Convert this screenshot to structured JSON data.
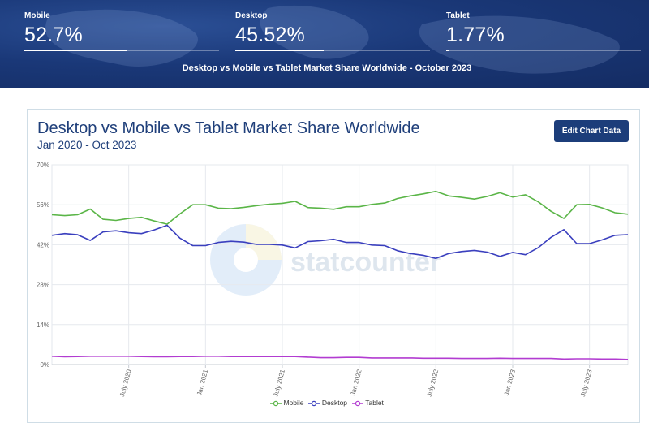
{
  "stats": [
    {
      "label": "Mobile",
      "value": "52.7%",
      "fill": 0.527
    },
    {
      "label": "Desktop",
      "value": "45.52%",
      "fill": 0.4552
    },
    {
      "label": "Tablet",
      "value": "1.77%",
      "fill": 0.0177
    }
  ],
  "banner_title": "Desktop vs Mobile vs Tablet Market Share Worldwide - October 2023",
  "edit_button_label": "Edit Chart Data",
  "watermark": "statcounter",
  "chart_data": {
    "type": "line",
    "title": "Desktop vs Mobile vs Tablet Market Share Worldwide",
    "subtitle": "Jan 2020 - Oct 2023",
    "xlabel": "",
    "ylabel": "",
    "x": [
      "2020-01",
      "2020-02",
      "2020-03",
      "2020-04",
      "2020-05",
      "2020-06",
      "2020-07",
      "2020-08",
      "2020-09",
      "2020-10",
      "2020-11",
      "2020-12",
      "2021-01",
      "2021-02",
      "2021-03",
      "2021-04",
      "2021-05",
      "2021-06",
      "2021-07",
      "2021-08",
      "2021-09",
      "2021-10",
      "2021-11",
      "2021-12",
      "2022-01",
      "2022-02",
      "2022-03",
      "2022-04",
      "2022-05",
      "2022-06",
      "2022-07",
      "2022-08",
      "2022-09",
      "2022-10",
      "2022-11",
      "2022-12",
      "2023-01",
      "2023-02",
      "2023-03",
      "2023-04",
      "2023-05",
      "2023-06",
      "2023-07",
      "2023-08",
      "2023-09",
      "2023-10"
    ],
    "x_tick_labels": [
      {
        "at": "2020-07",
        "label": "July 2020"
      },
      {
        "at": "2021-01",
        "label": "Jan 2021"
      },
      {
        "at": "2021-07",
        "label": "July 2021"
      },
      {
        "at": "2022-01",
        "label": "Jan 2022"
      },
      {
        "at": "2022-07",
        "label": "July 2022"
      },
      {
        "at": "2023-01",
        "label": "Jan 2023"
      },
      {
        "at": "2023-07",
        "label": "July 2023"
      }
    ],
    "y_ticks": [
      0,
      14,
      28,
      42,
      56,
      70
    ],
    "y_tick_labels": [
      "0%",
      "14%",
      "28%",
      "42%",
      "56%",
      "70%"
    ],
    "ylim": [
      0,
      70
    ],
    "grid": true,
    "legend": "bottom",
    "series": [
      {
        "name": "Mobile",
        "color": "#5ab547",
        "values": [
          52.5,
          52.2,
          52.5,
          54.5,
          50.9,
          50.5,
          51.2,
          51.6,
          50.3,
          49.2,
          52.8,
          56.0,
          56.0,
          54.8,
          54.6,
          55.1,
          55.7,
          56.2,
          56.5,
          57.2,
          55.0,
          54.8,
          54.4,
          55.3,
          55.3,
          56.1,
          56.6,
          58.2,
          59.1,
          59.8,
          60.7,
          59.1,
          58.6,
          58.0,
          58.9,
          60.2,
          58.7,
          59.5,
          57.0,
          53.7,
          51.2,
          56.0,
          56.1,
          54.9,
          53.2,
          52.7
        ]
      },
      {
        "name": "Desktop",
        "color": "#3a3fbe",
        "values": [
          45.3,
          45.9,
          45.5,
          43.5,
          46.5,
          46.9,
          46.2,
          45.9,
          47.2,
          48.8,
          44.3,
          41.7,
          41.7,
          42.8,
          43.2,
          42.9,
          42.1,
          42.1,
          41.9,
          40.9,
          43.1,
          43.4,
          43.9,
          42.8,
          42.8,
          41.9,
          41.7,
          39.9,
          38.9,
          38.3,
          37.2,
          38.9,
          39.6,
          40.0,
          39.4,
          37.9,
          39.3,
          38.5,
          41.0,
          44.6,
          47.3,
          42.4,
          42.4,
          43.7,
          45.3,
          45.52
        ]
      },
      {
        "name": "Tablet",
        "color": "#b23cd1",
        "values": [
          2.9,
          2.7,
          2.8,
          2.9,
          2.9,
          2.9,
          2.9,
          2.8,
          2.7,
          2.7,
          2.8,
          2.8,
          2.9,
          2.9,
          2.8,
          2.8,
          2.8,
          2.8,
          2.8,
          2.8,
          2.6,
          2.4,
          2.4,
          2.5,
          2.5,
          2.3,
          2.3,
          2.3,
          2.3,
          2.2,
          2.2,
          2.2,
          2.1,
          2.1,
          2.1,
          2.2,
          2.1,
          2.1,
          2.1,
          2.1,
          1.9,
          2.0,
          2.0,
          1.9,
          1.9,
          1.77
        ]
      }
    ]
  }
}
